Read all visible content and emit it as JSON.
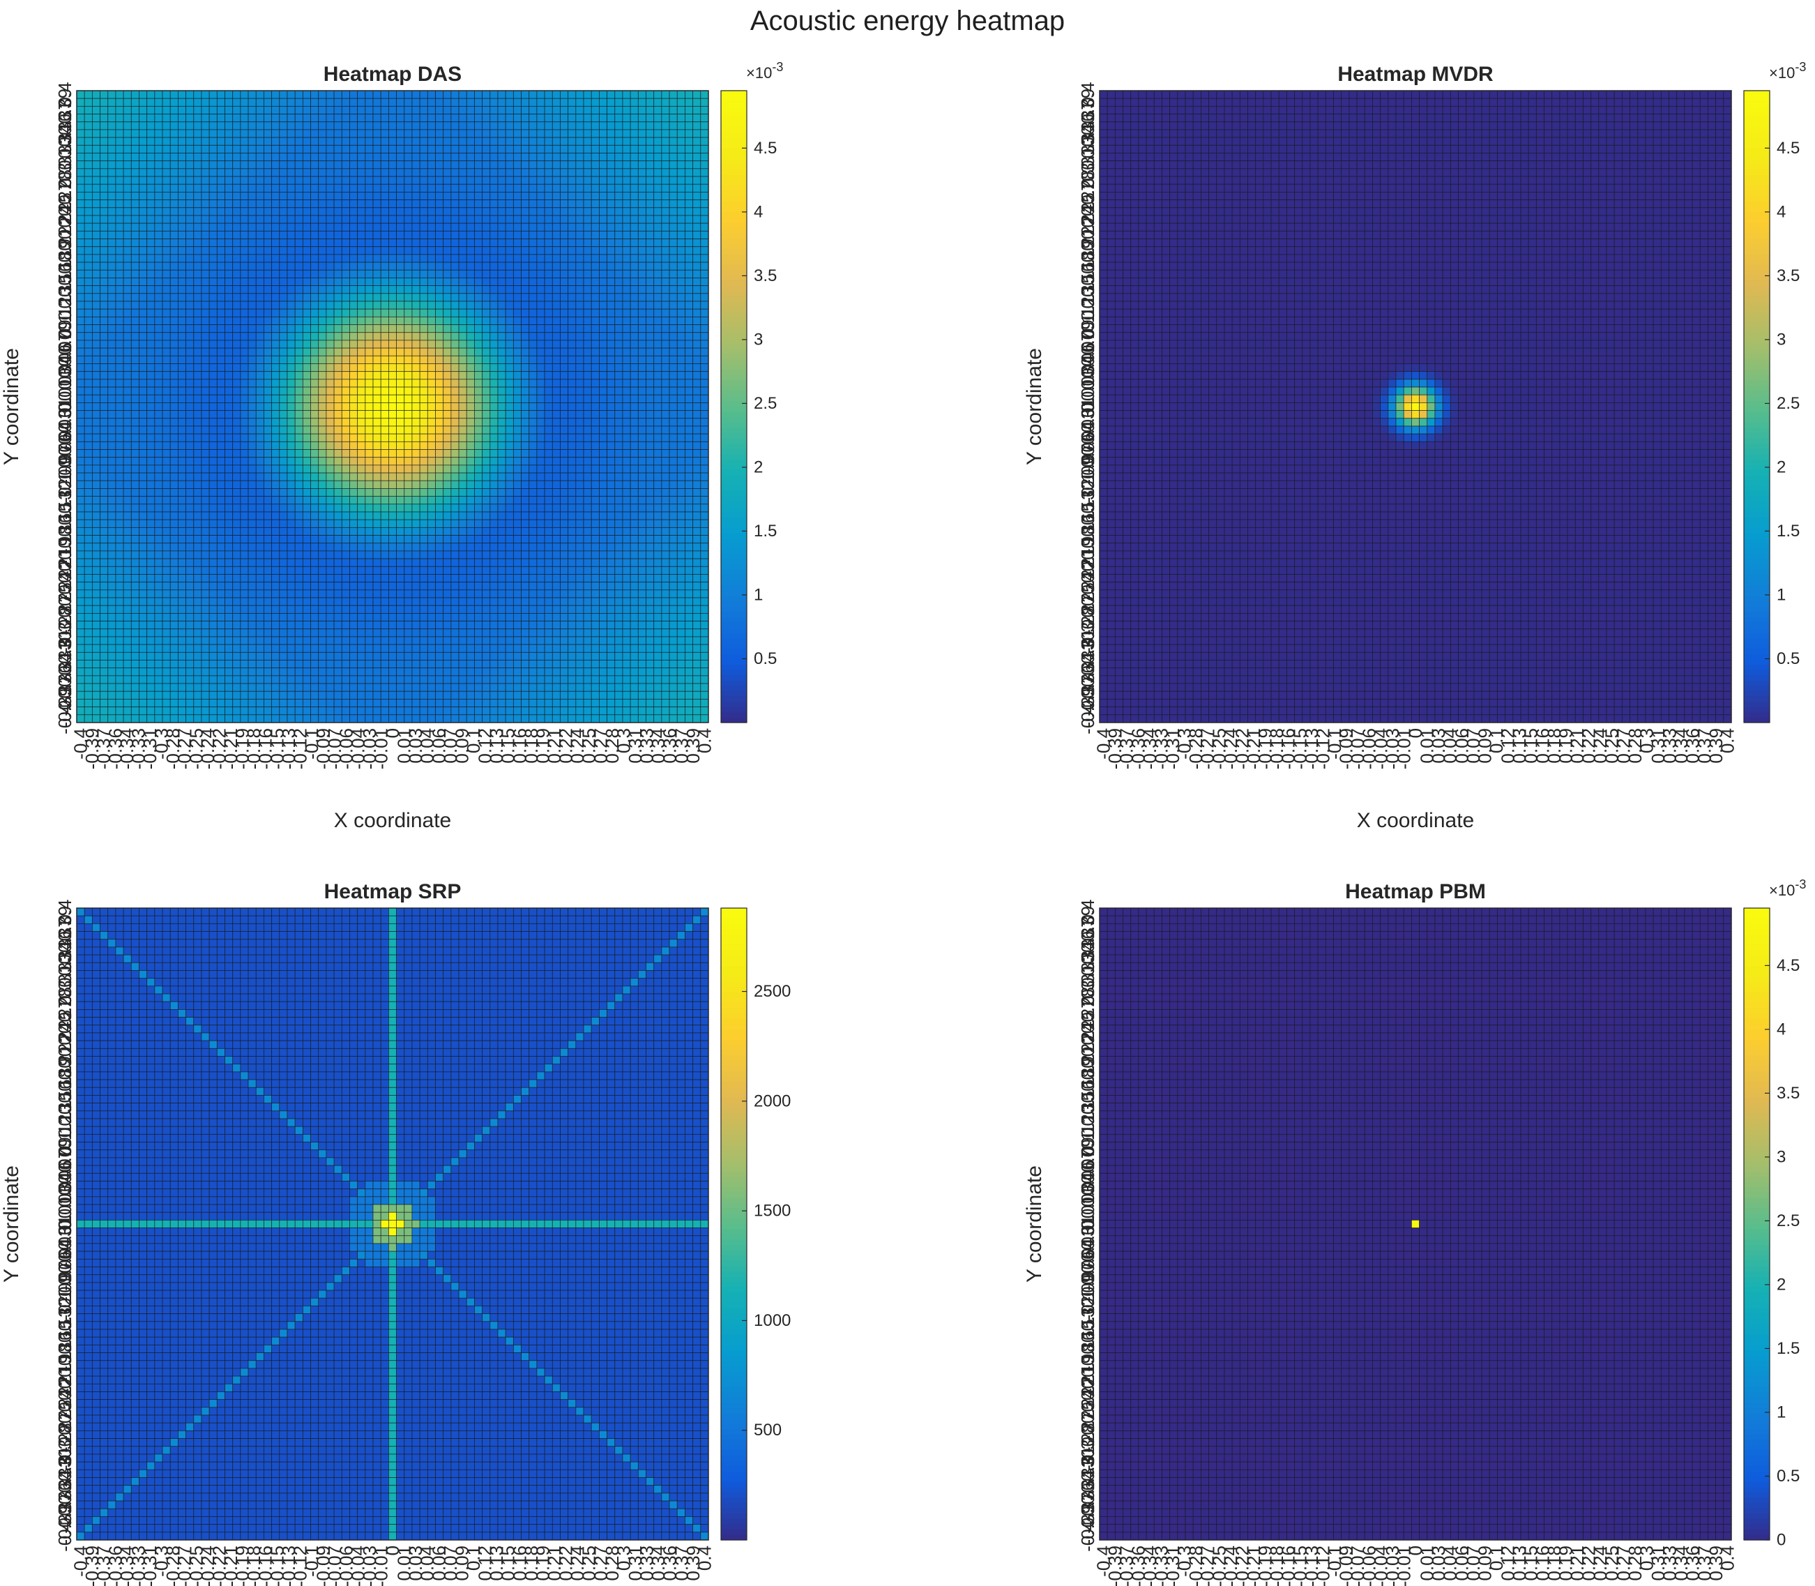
{
  "figure": {
    "suptitle": "Acoustic energy heatmap"
  },
  "chart_data": [
    {
      "type": "heatmap",
      "title": "Heatmap DAS",
      "xlabel": "X coordinate",
      "ylabel": "Y coordinate",
      "grid": {
        "x_range": [
          -0.4,
          0.4
        ],
        "y_range": [
          0.4,
          -0.4
        ],
        "step": 0.01,
        "cells": 81
      },
      "x_tick_labels": [
        "-0.4",
        "-0.39",
        "-0.37",
        "-0.36",
        "-0.34",
        "-0.33",
        "-0.31",
        "-0.3",
        "-0.28",
        "-0.27",
        "-0.25",
        "-0.24",
        "-0.22",
        "-0.21",
        "-0.19",
        "-0.18",
        "-0.16",
        "-0.15",
        "-0.13",
        "-0.12",
        "-0.1",
        "-0.09",
        "-0.07",
        "-0.06",
        "-0.04",
        "-0.03",
        "-0.01",
        "0",
        "0.01",
        "0.03",
        "0.04",
        "0.06",
        "0.07",
        "0.09",
        "0.1",
        "0.12",
        "0.13",
        "0.15",
        "0.16",
        "0.18",
        "0.19",
        "0.21",
        "0.22",
        "0.24",
        "0.25",
        "0.27",
        "0.28",
        "0.3",
        "0.31",
        "0.33",
        "0.34",
        "0.36",
        "0.37",
        "0.39",
        "0.4"
      ],
      "y_tick_labels": [
        "0.4",
        "0.39",
        "0.37",
        "0.36",
        "0.34",
        "0.33",
        "0.31",
        "0.3",
        "0.28",
        "0.27",
        "0.25",
        "0.24",
        "0.22",
        "0.21",
        "0.19",
        "0.18",
        "0.16",
        "0.15",
        "0.13",
        "0.12",
        "0.1",
        "0.09",
        "0.07",
        "0.06",
        "0.04",
        "0.03",
        "0.01",
        "0",
        "-0.01",
        "-0.03",
        "-0.04",
        "-0.06",
        "-0.07",
        "-0.09",
        "-0.1",
        "-0.12",
        "-0.13",
        "-0.15",
        "-0.16",
        "-0.18",
        "-0.19",
        "-0.21",
        "-0.22",
        "-0.24",
        "-0.25",
        "-0.27",
        "-0.28",
        "-0.3",
        "-0.31",
        "-0.33",
        "-0.34",
        "-0.36",
        "-0.37",
        "-0.39",
        "-0.4"
      ],
      "colorbar": {
        "range": [
          0,
          0.00495
        ],
        "ticks": [
          "0.5",
          "1",
          "1.5",
          "2",
          "2.5",
          "3",
          "3.5",
          "4",
          "4.5"
        ],
        "tick_values": [
          0.0005,
          0.001,
          0.0015,
          0.002,
          0.0025,
          0.003,
          0.0035,
          0.004,
          0.0045
        ],
        "exponent_label": "×10-3"
      },
      "pattern": {
        "kind": "gaussian_blob",
        "peak": {
          "x": 0.0,
          "y": 0.0,
          "value": 0.0049
        },
        "sigma": 0.1,
        "background": 0.0009,
        "corner_boost": 0.001
      },
      "colormap": "parula"
    },
    {
      "type": "heatmap",
      "title": "Heatmap MVDR",
      "xlabel": "X coordinate",
      "ylabel": "Y coordinate",
      "grid": {
        "x_range": [
          -0.4,
          0.4
        ],
        "y_range": [
          0.4,
          -0.4
        ],
        "step": 0.01,
        "cells": 81
      },
      "x_tick_labels": [
        "-0.4",
        "-0.39",
        "-0.37",
        "-0.36",
        "-0.34",
        "-0.33",
        "-0.31",
        "-0.3",
        "-0.28",
        "-0.27",
        "-0.25",
        "-0.24",
        "-0.22",
        "-0.21",
        "-0.19",
        "-0.18",
        "-0.16",
        "-0.15",
        "-0.13",
        "-0.12",
        "-0.1",
        "-0.09",
        "-0.07",
        "-0.06",
        "-0.04",
        "-0.03",
        "-0.01",
        "0",
        "0.01",
        "0.03",
        "0.04",
        "0.06",
        "0.07",
        "0.09",
        "0.1",
        "0.12",
        "0.13",
        "0.15",
        "0.16",
        "0.18",
        "0.19",
        "0.21",
        "0.22",
        "0.24",
        "0.25",
        "0.27",
        "0.28",
        "0.3",
        "0.31",
        "0.33",
        "0.34",
        "0.36",
        "0.37",
        "0.39",
        "0.4"
      ],
      "y_tick_labels": [
        "0.4",
        "0.39",
        "0.37",
        "0.36",
        "0.34",
        "0.33",
        "0.31",
        "0.3",
        "0.28",
        "0.27",
        "0.25",
        "0.24",
        "0.22",
        "0.21",
        "0.19",
        "0.18",
        "0.16",
        "0.15",
        "0.13",
        "0.12",
        "0.1",
        "0.09",
        "0.07",
        "0.06",
        "0.04",
        "0.03",
        "0.01",
        "0",
        "-0.01",
        "-0.03",
        "-0.04",
        "-0.06",
        "-0.07",
        "-0.09",
        "-0.1",
        "-0.12",
        "-0.13",
        "-0.15",
        "-0.16",
        "-0.18",
        "-0.19",
        "-0.21",
        "-0.22",
        "-0.24",
        "-0.25",
        "-0.27",
        "-0.28",
        "-0.3",
        "-0.31",
        "-0.33",
        "-0.34",
        "-0.36",
        "-0.37",
        "-0.39",
        "-0.4"
      ],
      "colorbar": {
        "range": [
          0,
          0.00495
        ],
        "ticks": [
          "0.5",
          "1",
          "1.5",
          "2",
          "2.5",
          "3",
          "3.5",
          "4",
          "4.5"
        ],
        "tick_values": [
          0.0005,
          0.001,
          0.0015,
          0.002,
          0.0025,
          0.003,
          0.0035,
          0.004,
          0.0045
        ],
        "exponent_label": "×10-3"
      },
      "pattern": {
        "kind": "gaussian_blob",
        "peak": {
          "x": 0.0,
          "y": 0.0,
          "value": 0.0049
        },
        "sigma": 0.018,
        "background": 2e-05,
        "corner_boost": 0
      },
      "colormap": "parula"
    },
    {
      "type": "heatmap",
      "title": "Heatmap SRP",
      "xlabel": "X coordinate",
      "ylabel": "Y coordinate",
      "grid": {
        "x_range": [
          -0.4,
          0.4
        ],
        "y_range": [
          0.4,
          -0.4
        ],
        "step": 0.01,
        "cells": 81
      },
      "x_tick_labels": [
        "-0.4",
        "-0.39",
        "-0.37",
        "-0.36",
        "-0.34",
        "-0.33",
        "-0.31",
        "-0.3",
        "-0.28",
        "-0.27",
        "-0.25",
        "-0.24",
        "-0.22",
        "-0.21",
        "-0.19",
        "-0.18",
        "-0.16",
        "-0.15",
        "-0.13",
        "-0.12",
        "-0.1",
        "-0.09",
        "-0.07",
        "-0.06",
        "-0.04",
        "-0.03",
        "-0.01",
        "0",
        "0.01",
        "0.03",
        "0.04",
        "0.06",
        "0.07",
        "0.09",
        "0.1",
        "0.12",
        "0.13",
        "0.15",
        "0.16",
        "0.18",
        "0.19",
        "0.21",
        "0.22",
        "0.24",
        "0.25",
        "0.27",
        "0.28",
        "0.3",
        "0.31",
        "0.33",
        "0.34",
        "0.36",
        "0.37",
        "0.39",
        "0.4"
      ],
      "y_tick_labels": [
        "0.4",
        "0.39",
        "0.37",
        "0.36",
        "0.34",
        "0.33",
        "0.31",
        "0.3",
        "0.28",
        "0.27",
        "0.25",
        "0.24",
        "0.22",
        "0.21",
        "0.19",
        "0.18",
        "0.16",
        "0.15",
        "0.13",
        "0.12",
        "0.1",
        "0.09",
        "0.07",
        "0.06",
        "0.04",
        "0.03",
        "0.01",
        "0",
        "-0.01",
        "-0.03",
        "-0.04",
        "-0.06",
        "-0.07",
        "-0.09",
        "-0.1",
        "-0.12",
        "-0.13",
        "-0.15",
        "-0.16",
        "-0.18",
        "-0.19",
        "-0.21",
        "-0.22",
        "-0.24",
        "-0.25",
        "-0.27",
        "-0.28",
        "-0.3",
        "-0.31",
        "-0.33",
        "-0.34",
        "-0.36",
        "-0.37",
        "-0.39",
        "-0.4"
      ],
      "colorbar": {
        "range": [
          0,
          2880
        ],
        "ticks": [
          "500",
          "1000",
          "1500",
          "2000",
          "2500"
        ],
        "tick_values": [
          500,
          1000,
          1500,
          2000,
          2500
        ],
        "exponent_label": ""
      },
      "pattern": {
        "kind": "star",
        "peak": {
          "x": 0.0,
          "y": 0.0,
          "value": 2850
        },
        "background": 220,
        "axis_line_value": 1150,
        "diagonal_line_value": 700,
        "near_center_value": 900,
        "gap_radius": 0.05
      },
      "colormap": "parula"
    },
    {
      "type": "heatmap",
      "title": "Heatmap PBM",
      "xlabel": "X coordinate",
      "ylabel": "Y coordinate",
      "grid": {
        "x_range": [
          -0.4,
          0.4
        ],
        "y_range": [
          0.4,
          -0.4
        ],
        "step": 0.01,
        "cells": 81
      },
      "x_tick_labels": [
        "-0.4",
        "-0.39",
        "-0.37",
        "-0.36",
        "-0.34",
        "-0.33",
        "-0.31",
        "-0.3",
        "-0.28",
        "-0.27",
        "-0.25",
        "-0.24",
        "-0.22",
        "-0.21",
        "-0.19",
        "-0.18",
        "-0.16",
        "-0.15",
        "-0.13",
        "-0.12",
        "-0.1",
        "-0.09",
        "-0.07",
        "-0.06",
        "-0.04",
        "-0.03",
        "-0.01",
        "0",
        "0.01",
        "0.03",
        "0.04",
        "0.06",
        "0.07",
        "0.09",
        "0.1",
        "0.12",
        "0.13",
        "0.15",
        "0.16",
        "0.18",
        "0.19",
        "0.21",
        "0.22",
        "0.24",
        "0.25",
        "0.27",
        "0.28",
        "0.3",
        "0.31",
        "0.33",
        "0.34",
        "0.36",
        "0.37",
        "0.39",
        "0.4"
      ],
      "y_tick_labels": [
        "0.4",
        "0.39",
        "0.37",
        "0.36",
        "0.34",
        "0.33",
        "0.31",
        "0.3",
        "0.28",
        "0.27",
        "0.25",
        "0.24",
        "0.22",
        "0.21",
        "0.19",
        "0.18",
        "0.16",
        "0.15",
        "0.13",
        "0.12",
        "0.1",
        "0.09",
        "0.07",
        "0.06",
        "0.04",
        "0.03",
        "0.01",
        "0",
        "-0.01",
        "-0.03",
        "-0.04",
        "-0.06",
        "-0.07",
        "-0.09",
        "-0.1",
        "-0.12",
        "-0.13",
        "-0.15",
        "-0.16",
        "-0.18",
        "-0.19",
        "-0.21",
        "-0.22",
        "-0.24",
        "-0.25",
        "-0.27",
        "-0.28",
        "-0.3",
        "-0.31",
        "-0.33",
        "-0.34",
        "-0.36",
        "-0.37",
        "-0.39",
        "-0.4"
      ],
      "colorbar": {
        "range": [
          0,
          0.00495
        ],
        "ticks": [
          "0",
          "0.5",
          "1",
          "1.5",
          "2",
          "2.5",
          "3",
          "3.5",
          "4",
          "4.5"
        ],
        "tick_values": [
          0,
          0.0005,
          0.001,
          0.0015,
          0.002,
          0.0025,
          0.003,
          0.0035,
          0.004,
          0.0045
        ],
        "exponent_label": "×10-3"
      },
      "pattern": {
        "kind": "single_cell",
        "peak": {
          "x": 0.0,
          "y": 0.0,
          "value": 0.0049
        },
        "background": 0.0
      },
      "colormap": "parula"
    }
  ]
}
